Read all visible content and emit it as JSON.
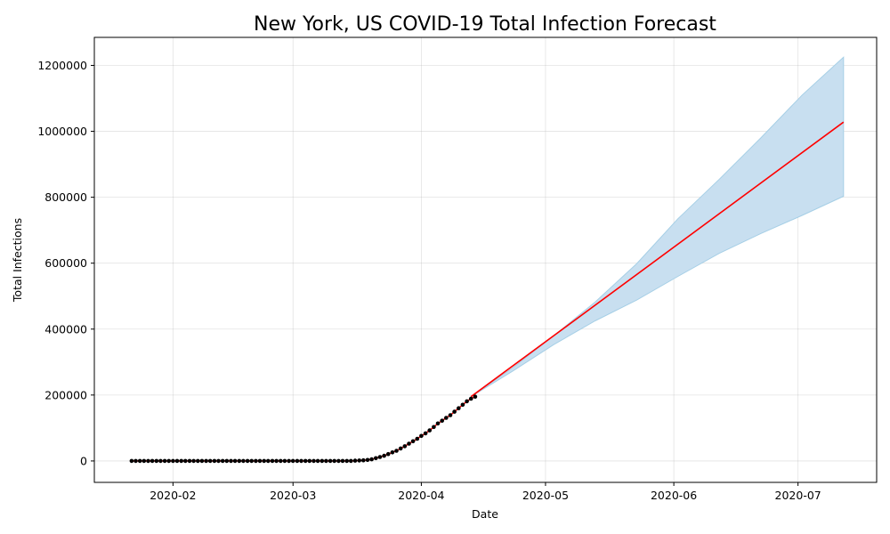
{
  "chart_data": {
    "type": "line",
    "title": "New York, US COVID-19 Total Infection Forecast",
    "xlabel": "Date",
    "ylabel": "Total Infections",
    "xlim": [
      "2020-01-13",
      "2020-07-20"
    ],
    "ylim": [
      -65000,
      1285000
    ],
    "grid": true,
    "x_ticks": [
      "2020-02-01",
      "2020-03-01",
      "2020-04-01",
      "2020-05-01",
      "2020-06-01",
      "2020-07-01"
    ],
    "x_tick_labels": [
      "2020-02",
      "2020-03",
      "2020-04",
      "2020-05",
      "2020-06",
      "2020-07"
    ],
    "y_ticks": [
      0,
      200000,
      400000,
      600000,
      800000,
      1000000,
      1200000
    ],
    "y_tick_labels": [
      "0",
      "200000",
      "400000",
      "600000",
      "800000",
      "1000000",
      "1200000"
    ],
    "colors": {
      "observed": "#000000",
      "forecast": "#ff0000",
      "interval": "#c8dff0",
      "interval_edge": "#a6cfe6"
    },
    "observed": {
      "start": "2020-01-22",
      "values": [
        0,
        0,
        0,
        0,
        0,
        0,
        0,
        0,
        0,
        0,
        0,
        0,
        0,
        0,
        0,
        0,
        0,
        0,
        0,
        0,
        0,
        0,
        0,
        0,
        0,
        0,
        0,
        0,
        0,
        0,
        0,
        0,
        0,
        0,
        0,
        0,
        0,
        0,
        0,
        0,
        0,
        0,
        0,
        0,
        0,
        0,
        0,
        0,
        0,
        0,
        0,
        0,
        0,
        0,
        1000,
        1500,
        2000,
        3000,
        5000,
        8500,
        12000,
        15800,
        20800,
        26000,
        30800,
        37900,
        44600,
        52400,
        59800,
        67400,
        76000,
        83900,
        92600,
        102900,
        113700,
        122000,
        130700,
        138800,
        149300,
        159900,
        170500,
        181000,
        188700,
        195000
      ]
    },
    "forecast": {
      "x": [
        "2020-04-13",
        "2020-07-12"
      ],
      "y": [
        195000,
        1028000
      ]
    },
    "interval": {
      "x": [
        "2020-04-13",
        "2020-04-23",
        "2020-05-03",
        "2020-05-13",
        "2020-05-23",
        "2020-06-02",
        "2020-06-12",
        "2020-06-22",
        "2020-07-02",
        "2020-07-12"
      ],
      "lower": [
        195000,
        272000,
        353000,
        425000,
        488000,
        560000,
        630000,
        690000,
        745000,
        803000
      ],
      "upper": [
        195000,
        282000,
        380000,
        482000,
        598000,
        735000,
        855000,
        980000,
        1110000,
        1225000
      ]
    }
  }
}
